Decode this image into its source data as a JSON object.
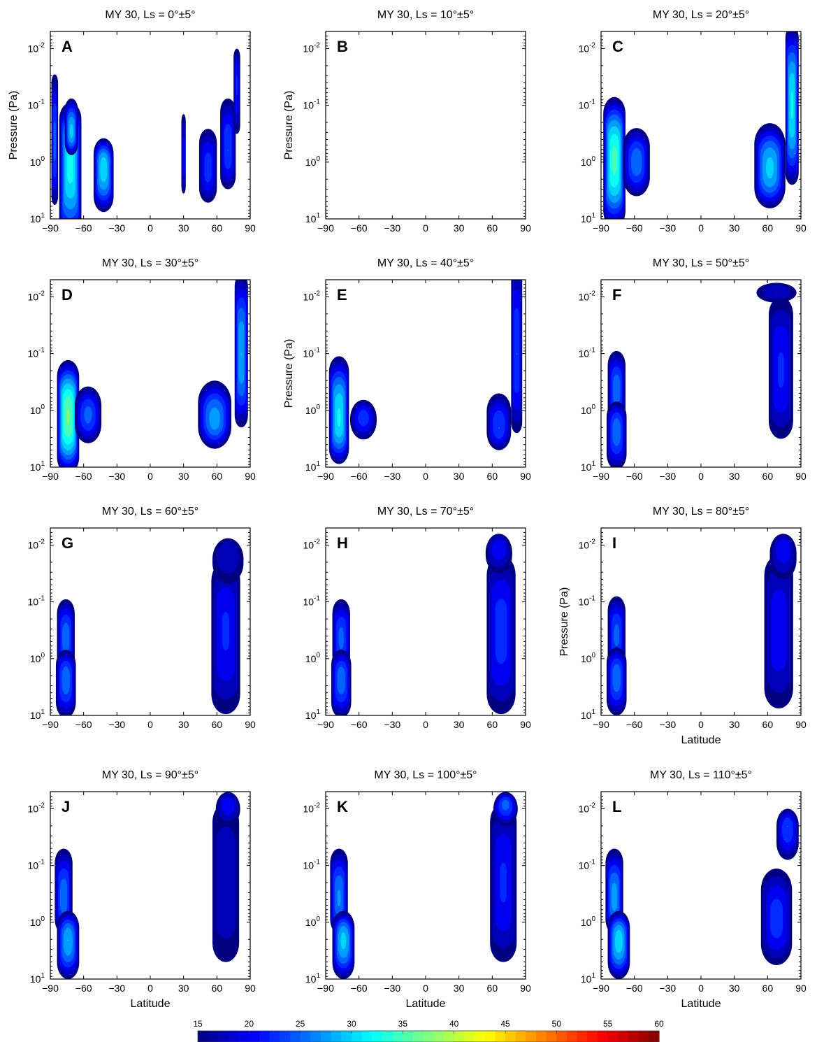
{
  "chart_data": {
    "type": "heatmap",
    "rows": 4,
    "cols": 3,
    "xlim": [
      -90,
      90
    ],
    "xticks": [
      -90,
      -60,
      -30,
      0,
      30,
      60,
      90
    ],
    "ylim_log": [
      10,
      0.005
    ],
    "yticks": [
      {
        "base": "10",
        "exp": "-2",
        "v": 0.01
      },
      {
        "base": "10",
        "exp": "-1",
        "v": 0.1
      },
      {
        "base": "10",
        "exp": "0",
        "v": 1
      },
      {
        "base": "10",
        "exp": "1",
        "v": 10
      }
    ],
    "yscale": "log-reversed",
    "ylabel": "Pressure (Pa)",
    "xlabel": "Latitude",
    "panels": [
      {
        "letter": "A",
        "title": "MY 30, Ls = 0°±5°",
        "ylabel": true,
        "xlabel": false,
        "blobs": [
          {
            "lat": -86,
            "p": 0.45,
            "lw": 3,
            "dlo": 1.1,
            "dhi": 1.2,
            "peak": 26
          },
          {
            "lat": -72,
            "p": 0.9,
            "lw": 10,
            "dlo": 1.5,
            "dhi": 1.0,
            "peak": 34
          },
          {
            "lat": -71,
            "p": 0.3,
            "lw": 6,
            "dlo": 0.4,
            "dhi": 0.6,
            "peak": 31
          },
          {
            "lat": -42,
            "p": 1.2,
            "lw": 9,
            "dlo": 0.8,
            "dhi": 0.5,
            "peak": 32
          },
          {
            "lat": 30,
            "p": 0.9,
            "lw": 2,
            "dlo": 0.6,
            "dhi": 0.8,
            "peak": 22
          },
          {
            "lat": 52,
            "p": 1.3,
            "lw": 8,
            "dlo": 0.6,
            "dhi": 0.7,
            "peak": 24
          },
          {
            "lat": 70,
            "p": 0.6,
            "lw": 7,
            "dlo": 0.7,
            "dhi": 0.9,
            "peak": 25
          },
          {
            "lat": 78,
            "p": 0.04,
            "lw": 3,
            "dlo": 0.9,
            "dhi": 0.6,
            "peak": 23
          }
        ]
      },
      {
        "letter": "B",
        "title": "MY 30, Ls = 10°±5°",
        "ylabel": true,
        "xlabel": false,
        "blobs": []
      },
      {
        "letter": "C",
        "title": "MY 30, Ls = 20°±5°",
        "ylabel": false,
        "xlabel": false,
        "blobs": [
          {
            "lat": -78,
            "p": 0.9,
            "lw": 10,
            "dlo": 1.2,
            "dhi": 1.1,
            "peak": 36
          },
          {
            "lat": -58,
            "p": 1.0,
            "lw": 12,
            "dlo": 0.6,
            "dhi": 0.6,
            "peak": 27
          },
          {
            "lat": 62,
            "p": 1.3,
            "lw": 14,
            "dlo": 0.7,
            "dhi": 0.8,
            "peak": 31
          },
          {
            "lat": 82,
            "p": 0.1,
            "lw": 6,
            "dlo": 1.4,
            "dhi": 1.4,
            "peak": 33
          }
        ]
      },
      {
        "letter": "D",
        "title": "MY 30, Ls = 30°±5°",
        "ylabel": false,
        "xlabel": false,
        "blobs": [
          {
            "lat": -74,
            "p": 1.3,
            "lw": 10,
            "dlo": 1.0,
            "dhi": 1.0,
            "peak": 38
          },
          {
            "lat": -56,
            "p": 1.2,
            "lw": 12,
            "dlo": 0.5,
            "dhi": 0.5,
            "peak": 26
          },
          {
            "lat": 58,
            "p": 1.5,
            "lw": 15,
            "dlo": 0.5,
            "dhi": 0.7,
            "peak": 29
          },
          {
            "lat": 82,
            "p": 0.1,
            "lw": 6,
            "dlo": 1.3,
            "dhi": 1.4,
            "peak": 30
          }
        ]
      },
      {
        "letter": "E",
        "title": "MY 30, Ls = 40°±5°",
        "ylabel": true,
        "xlabel": false,
        "blobs": [
          {
            "lat": -78,
            "p": 1.4,
            "lw": 9,
            "dlo": 0.8,
            "dhi": 1.1,
            "peak": 33
          },
          {
            "lat": -56,
            "p": 1.3,
            "lw": 12,
            "dlo": 0.4,
            "dhi": 0.3,
            "peak": 24
          },
          {
            "lat": 66,
            "p": 2.0,
            "lw": 11,
            "dlo": 0.4,
            "dhi": 0.6,
            "peak": 25
          },
          {
            "lat": 82,
            "p": 0.1,
            "lw": 5,
            "dlo": 1.4,
            "dhi": 1.6,
            "peak": 25
          }
        ]
      },
      {
        "letter": "F",
        "title": "MY 30, Ls = 50°±5°",
        "ylabel": false,
        "xlabel": false,
        "blobs": [
          {
            "lat": -76,
            "p": 0.45,
            "lw": 8,
            "dlo": 0.6,
            "dhi": 0.7,
            "peak": 27
          },
          {
            "lat": -76,
            "p": 2.2,
            "lw": 9,
            "dlo": 0.7,
            "dhi": 0.5,
            "peak": 27
          },
          {
            "lat": 72,
            "p": 0.2,
            "lw": 11,
            "dlo": 1.2,
            "dhi": 1.3,
            "peak": 23
          },
          {
            "lat": 68,
            "p": 0.008,
            "lw": 18,
            "dlo": 0.2,
            "dhi": 0.15,
            "peak": 20
          }
        ]
      },
      {
        "letter": "G",
        "title": "MY 30, Ls = 60°±5°",
        "ylabel": false,
        "xlabel": false,
        "blobs": [
          {
            "lat": -76,
            "p": 0.45,
            "lw": 8,
            "dlo": 0.6,
            "dhi": 0.7,
            "peak": 27
          },
          {
            "lat": -76,
            "p": 2.2,
            "lw": 9,
            "dlo": 0.7,
            "dhi": 0.5,
            "peak": 27
          },
          {
            "lat": 68,
            "p": 0.3,
            "lw": 13,
            "dlo": 1.5,
            "dhi": 1.2,
            "peak": 23
          },
          {
            "lat": 70,
            "p": 0.012,
            "lw": 14,
            "dlo": 0.6,
            "dhi": 0.2,
            "peak": 20
          }
        ]
      },
      {
        "letter": "H",
        "title": "MY 30, Ls = 70°±5°",
        "ylabel": false,
        "xlabel": false,
        "blobs": [
          {
            "lat": -76,
            "p": 0.45,
            "lw": 8,
            "dlo": 0.6,
            "dhi": 0.7,
            "peak": 26
          },
          {
            "lat": -76,
            "p": 2.2,
            "lw": 9,
            "dlo": 0.7,
            "dhi": 0.5,
            "peak": 27
          },
          {
            "lat": 68,
            "p": 0.3,
            "lw": 13,
            "dlo": 1.5,
            "dhi": 1.3,
            "peak": 24
          },
          {
            "lat": 66,
            "p": 0.01,
            "lw": 12,
            "dlo": 0.5,
            "dhi": 0.2,
            "peak": 22
          }
        ]
      },
      {
        "letter": "I",
        "title": "MY 30, Ls = 80°±5°",
        "ylabel": true,
        "xlabel": true,
        "blobs": [
          {
            "lat": -76,
            "p": 0.4,
            "lw": 8,
            "dlo": 0.6,
            "dhi": 0.7,
            "peak": 26
          },
          {
            "lat": -76,
            "p": 2.0,
            "lw": 9,
            "dlo": 0.7,
            "dhi": 0.5,
            "peak": 27
          },
          {
            "lat": 70,
            "p": 0.3,
            "lw": 13,
            "dlo": 1.4,
            "dhi": 1.3,
            "peak": 22
          },
          {
            "lat": 74,
            "p": 0.01,
            "lw": 12,
            "dlo": 0.6,
            "dhi": 0.2,
            "peak": 22
          }
        ]
      },
      {
        "letter": "J",
        "title": "MY 30, Ls = 90°±5°",
        "ylabel": false,
        "xlabel": true,
        "blobs": [
          {
            "lat": -78,
            "p": 0.4,
            "lw": 8,
            "dlo": 0.6,
            "dhi": 0.9,
            "peak": 27
          },
          {
            "lat": -74,
            "p": 2.0,
            "lw": 10,
            "dlo": 0.7,
            "dhi": 0.5,
            "peak": 30
          },
          {
            "lat": 68,
            "p": 0.2,
            "lw": 12,
            "dlo": 1.4,
            "dhi": 1.4,
            "peak": 20
          },
          {
            "lat": 70,
            "p": 0.008,
            "lw": 11,
            "dlo": 0.4,
            "dhi": 0.2,
            "peak": 22
          }
        ]
      },
      {
        "letter": "K",
        "title": "MY 30, Ls = 100°±5°",
        "ylabel": false,
        "xlabel": true,
        "blobs": [
          {
            "lat": -78,
            "p": 0.4,
            "lw": 8,
            "dlo": 0.6,
            "dhi": 0.9,
            "peak": 28
          },
          {
            "lat": -74,
            "p": 2.0,
            "lw": 10,
            "dlo": 0.7,
            "dhi": 0.5,
            "peak": 31
          },
          {
            "lat": 70,
            "p": 0.2,
            "lw": 12,
            "dlo": 1.4,
            "dhi": 1.4,
            "peak": 23
          },
          {
            "lat": 72,
            "p": 0.008,
            "lw": 11,
            "dlo": 0.4,
            "dhi": 0.2,
            "peak": 26
          }
        ]
      },
      {
        "letter": "L",
        "title": "MY 30, Ls = 110°±5°",
        "ylabel": false,
        "xlabel": true,
        "blobs": [
          {
            "lat": -78,
            "p": 0.4,
            "lw": 8,
            "dlo": 0.6,
            "dhi": 0.9,
            "peak": 29
          },
          {
            "lat": -74,
            "p": 2.0,
            "lw": 10,
            "dlo": 0.7,
            "dhi": 0.5,
            "peak": 32
          },
          {
            "lat": 68,
            "p": 0.9,
            "lw": 14,
            "dlo": 0.8,
            "dhi": 0.9,
            "peak": 24
          },
          {
            "lat": 78,
            "p": 0.02,
            "lw": 10,
            "dlo": 0.6,
            "dhi": 0.3,
            "peak": 25
          }
        ]
      }
    ],
    "colorbar": {
      "min": 15,
      "max": 60,
      "ticks": [
        "15",
        "20",
        "25",
        "30",
        "35",
        "40",
        "45",
        "50",
        "55",
        "60"
      ],
      "colormap": "jet"
    }
  }
}
